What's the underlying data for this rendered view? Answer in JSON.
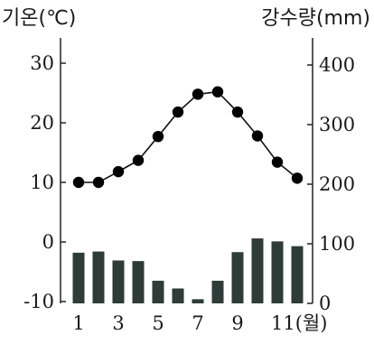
{
  "chart_data": {
    "type": "bar+line",
    "title": "",
    "left_axis": {
      "label": "기온(℃)",
      "range": [
        -10,
        35
      ],
      "ticks": [
        -10,
        0,
        10,
        20,
        30
      ]
    },
    "right_axis": {
      "label": "강수량(mm)",
      "range": [
        0,
        450
      ],
      "ticks": [
        0,
        100,
        200,
        300,
        400
      ]
    },
    "x_axis": {
      "categories": [
        1,
        2,
        3,
        4,
        5,
        6,
        7,
        8,
        9,
        10,
        11,
        12
      ],
      "tick_labels": [
        "1",
        "3",
        "5",
        "7",
        "9",
        "11(월)"
      ],
      "labeled_months": [
        1,
        3,
        5,
        7,
        9,
        11
      ]
    },
    "series": [
      {
        "kind": "line",
        "axis": "left",
        "values": [
          10.0,
          10.0,
          11.8,
          13.7,
          17.7,
          21.8,
          24.8,
          25.2,
          21.8,
          17.8,
          13.4,
          10.7
        ]
      },
      {
        "kind": "bar",
        "axis": "right",
        "values": [
          85,
          87,
          72,
          71,
          38,
          25,
          7,
          38,
          86,
          109,
          104,
          96
        ]
      }
    ],
    "colors": {
      "bar": "#2e3b39",
      "line": "#111111",
      "marker": "#000000"
    },
    "grid": false
  }
}
